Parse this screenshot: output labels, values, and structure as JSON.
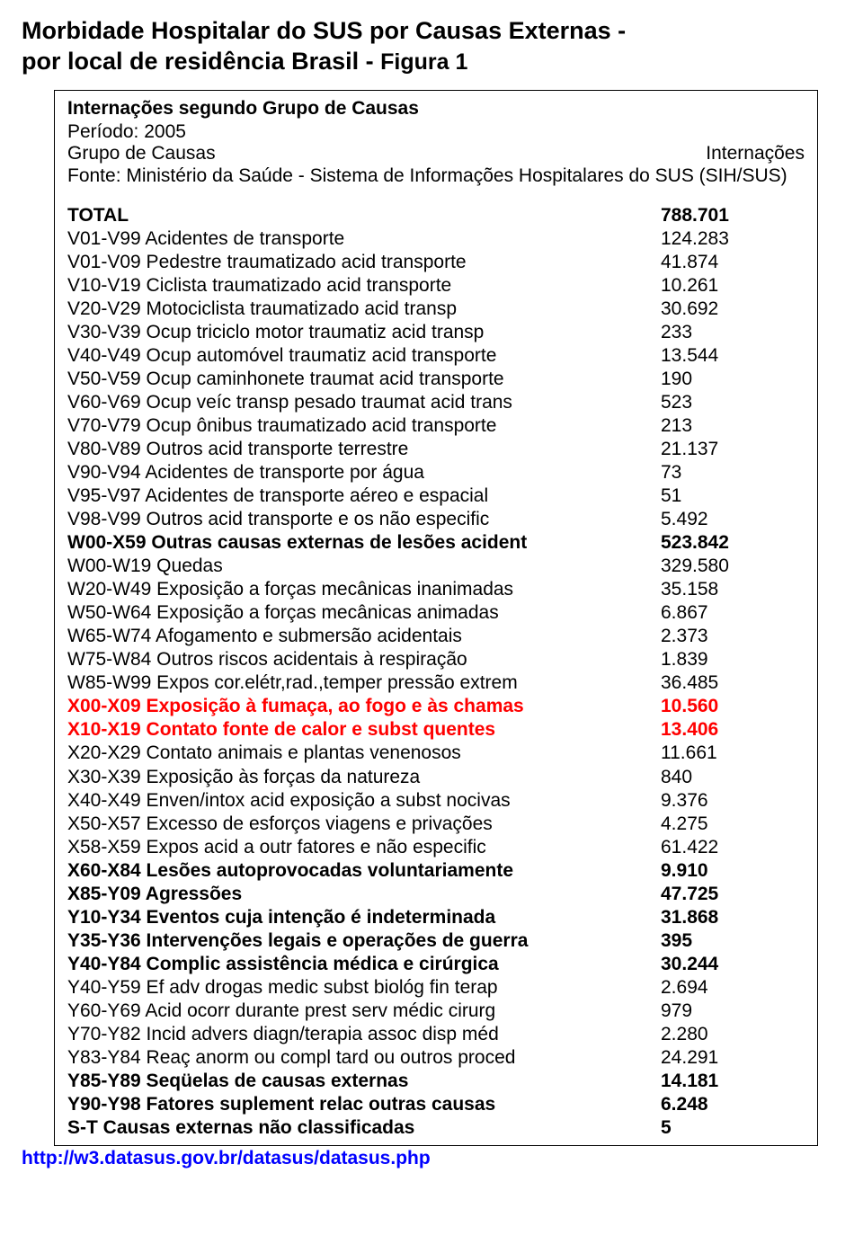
{
  "title": {
    "line1": "Morbidade Hospitalar do SUS por Causas Externas -",
    "line2_a": "por local de residência Brasil  - ",
    "line2_b": "Figura 1"
  },
  "header": {
    "subtitle": "Internações segundo Grupo de Causas",
    "periodo_label": "Período:",
    "periodo_value": "2005",
    "col_left": "Grupo de Causas",
    "col_right": "Internações",
    "fonte": "Fonte: Ministério da Saúde - Sistema de Informações Hospitalares do SUS (SIH/SUS)"
  },
  "rows": [
    {
      "style": "bold",
      "label": "TOTAL",
      "value": "788.701"
    },
    {
      "style": "",
      "label": "V01-V99 Acidentes de transporte",
      "value": "124.283"
    },
    {
      "style": "",
      "label": "V01-V09 Pedestre traumatizado acid transporte",
      "value": "41.874"
    },
    {
      "style": "",
      "label": "V10-V19 Ciclista traumatizado acid transporte",
      "value": "10.261"
    },
    {
      "style": "",
      "label": "V20-V29 Motociclista traumatizado acid transp",
      "value": "30.692"
    },
    {
      "style": "",
      "label": "V30-V39 Ocup triciclo motor traumatiz acid transp",
      "value": "233"
    },
    {
      "style": "",
      "label": "V40-V49 Ocup automóvel traumatiz acid transporte",
      "value": "13.544"
    },
    {
      "style": "",
      "label": "V50-V59 Ocup caminhonete traumat acid transporte",
      "value": "190"
    },
    {
      "style": "",
      "label": "V60-V69 Ocup veíc transp pesado traumat acid trans",
      "value": "523"
    },
    {
      "style": "",
      "label": "V70-V79 Ocup ônibus traumatizado acid transporte",
      "value": "213"
    },
    {
      "style": "",
      "label": "V80-V89 Outros acid transporte terrestre",
      "value": "21.137"
    },
    {
      "style": "",
      "label": "V90-V94 Acidentes de transporte por água",
      "value": "73"
    },
    {
      "style": "",
      "label": "V95-V97 Acidentes de transporte aéreo e espacial",
      "value": "51"
    },
    {
      "style": "",
      "label": "V98-V99 Outros acid transporte e os não especific",
      "value": "5.492"
    },
    {
      "style": "bold",
      "label": "W00-X59 Outras causas externas de lesões acident",
      "value": "523.842"
    },
    {
      "style": "",
      "label": "W00-W19 Quedas",
      "value": "329.580"
    },
    {
      "style": "",
      "label": "W20-W49 Exposição a forças mecânicas inanimadas",
      "value": "35.158"
    },
    {
      "style": "",
      "label": "W50-W64 Exposição a forças mecânicas animadas",
      "value": "6.867"
    },
    {
      "style": "",
      "label": "W65-W74 Afogamento e submersão acidentais",
      "value": "2.373"
    },
    {
      "style": "",
      "label": "W75-W84 Outros riscos acidentais à respiração",
      "value": "1.839"
    },
    {
      "style": "",
      "label": "W85-W99 Expos cor.elétr,rad.,temper pressão extrem",
      "value": "36.485"
    },
    {
      "style": "red",
      "label": "X00-X09 Exposição à fumaça, ao fogo e às chamas",
      "value": "10.560"
    },
    {
      "style": "red",
      "label": "X10-X19 Contato fonte de calor e subst quentes",
      "value": "13.406"
    },
    {
      "style": "",
      "label": "X20-X29 Contato animais e plantas venenosos",
      "value": "11.661"
    },
    {
      "style": "",
      "label": "X30-X39 Exposição às forças da natureza",
      "value": "840"
    },
    {
      "style": "",
      "label": "X40-X49 Enven/intox acid exposição a subst nocivas",
      "value": "9.376"
    },
    {
      "style": "",
      "label": "X50-X57 Excesso de esforços viagens e privações",
      "value": "4.275"
    },
    {
      "style": "",
      "label": "X58-X59 Expos acid a outr fatores e não especific",
      "value": "61.422"
    },
    {
      "style": "bold",
      "label": "X60-X84 Lesões autoprovocadas voluntariamente",
      "value": "9.910"
    },
    {
      "style": "bold",
      "label": "X85-Y09 Agressões",
      "value": "47.725"
    },
    {
      "style": "bold",
      "label": "Y10-Y34 Eventos cuja intenção é indeterminada",
      "value": "31.868"
    },
    {
      "style": "bold",
      "label": "Y35-Y36 Intervenções legais e operações de guerra",
      "value": "395"
    },
    {
      "style": "bold",
      "label": "Y40-Y84 Complic assistência médica e cirúrgica",
      "value": "30.244"
    },
    {
      "style": "",
      "label": "Y40-Y59 Ef adv drogas medic subst biológ fin terap",
      "value": "2.694"
    },
    {
      "style": "",
      "label": "Y60-Y69 Acid ocorr durante prest serv médic cirurg",
      "value": "979"
    },
    {
      "style": "",
      "label": "Y70-Y82 Incid advers diagn/terapia assoc disp méd",
      "value": "2.280"
    },
    {
      "style": "",
      "label": "Y83-Y84 Reaç anorm ou compl tard ou outros proced",
      "value": "24.291"
    },
    {
      "style": "bold",
      "label": "Y85-Y89 Seqüelas de causas externas",
      "value": "14.181"
    },
    {
      "style": "bold",
      "label": "Y90-Y98 Fatores suplement relac outras causas",
      "value": "6.248"
    },
    {
      "style": "bold",
      "label": "S-T Causas externas não classificadas",
      "value": "5"
    }
  ],
  "link": "http://w3.datasus.gov.br/datasus/datasus.php"
}
